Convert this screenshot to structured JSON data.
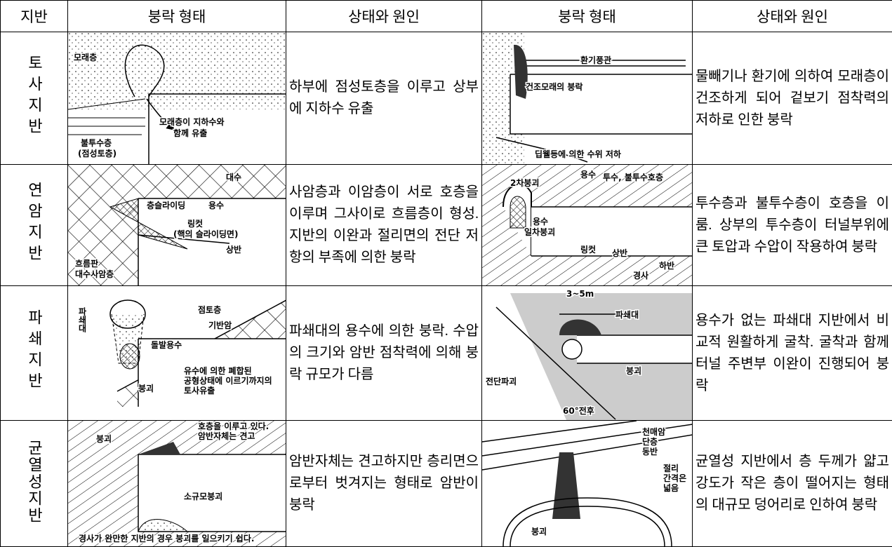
{
  "table": {
    "header": [
      "지반",
      "붕락 형태",
      "상태와 원인",
      "붕락 형태",
      "상태와 원인"
    ],
    "rows": [
      {
        "ground": "토사지반",
        "left_diagram": [
          "모래층",
          "모래층이 지하수와",
          "함께 유출",
          "불투수층",
          "(점성토층)"
        ],
        "left_text": "하부에 점성토층을 이루고 상부에 지하수 유출",
        "right_diagram": [
          "환기풍관",
          "건조모래의 붕락",
          "딥웰등에 의한 수위 저하"
        ],
        "right_text": "물빼기나 환기에 의하여 모래층이 건조하게 되어 겉보기 점착력의 저하로 인한 붕락"
      },
      {
        "ground": "연암지반",
        "left_diagram": [
          "대수",
          "층슬라이딩",
          "용수",
          "링컷",
          "(핵의 슬라이딩면)",
          "상반",
          "흐름판",
          "대수사암층"
        ],
        "left_text": "사암층과 이암층이 서로 호층을 이루며 그사이로 흐름층이 형성. 지반의 이완과 절리면의 전단 저항의 부족에 의한 붕락",
        "right_diagram": [
          "2차붕괴",
          "용수",
          "투수, 불투수호층",
          "용수",
          "일차붕괴",
          "링컷",
          "상반",
          "하반",
          "경사"
        ],
        "right_text": "투수층과 불투수층이 호층을 이룸. 상부의 투수층이 터널부위에 큰 토압과 수압이 작용하여 붕락"
      },
      {
        "ground": "파쇄지반",
        "left_diagram": [
          "파쇄대",
          "점토층",
          "기반암",
          "돌발용수",
          "붕괴",
          "유수에 의한 폐합된",
          "공형상태에 이르기까지의",
          "토사유출"
        ],
        "left_text": "파쇄대의 용수에 의한 붕락. 수압의 크기와 암반 점착력에 의해 붕락 규모가 다름",
        "right_diagram": [
          "3~5m",
          "파쇄대",
          "전단파괴",
          "붕괴",
          "60°전후"
        ],
        "right_text": "용수가 없는 파쇄대 지반에서 비교적 원활하게 굴착. 굴착과 함께 터널 주변부 이완이 진행되어 붕락"
      },
      {
        "ground": "균열성지반",
        "left_diagram": [
          "호층을 이루고 있다.",
          "암반자체는 견고",
          "붕괴",
          "소규모붕괴",
          "경사가 완만한 지반의 경우 붕괴를 일으키기 쉽다."
        ],
        "left_text": "암반자체는 견고하지만 층리면으로부터 벗겨지는 형태로 암반이 붕락",
        "right_diagram": [
          "천매암",
          "단층",
          "동반",
          "절리",
          "간격은",
          "넓음",
          "붕괴"
        ],
        "right_text": "균열성 지반에서 층 두께가 얇고 강도가 작은 층이 떨어지는 형태의 대규모 덩어리로 인하여 붕락"
      }
    ]
  }
}
